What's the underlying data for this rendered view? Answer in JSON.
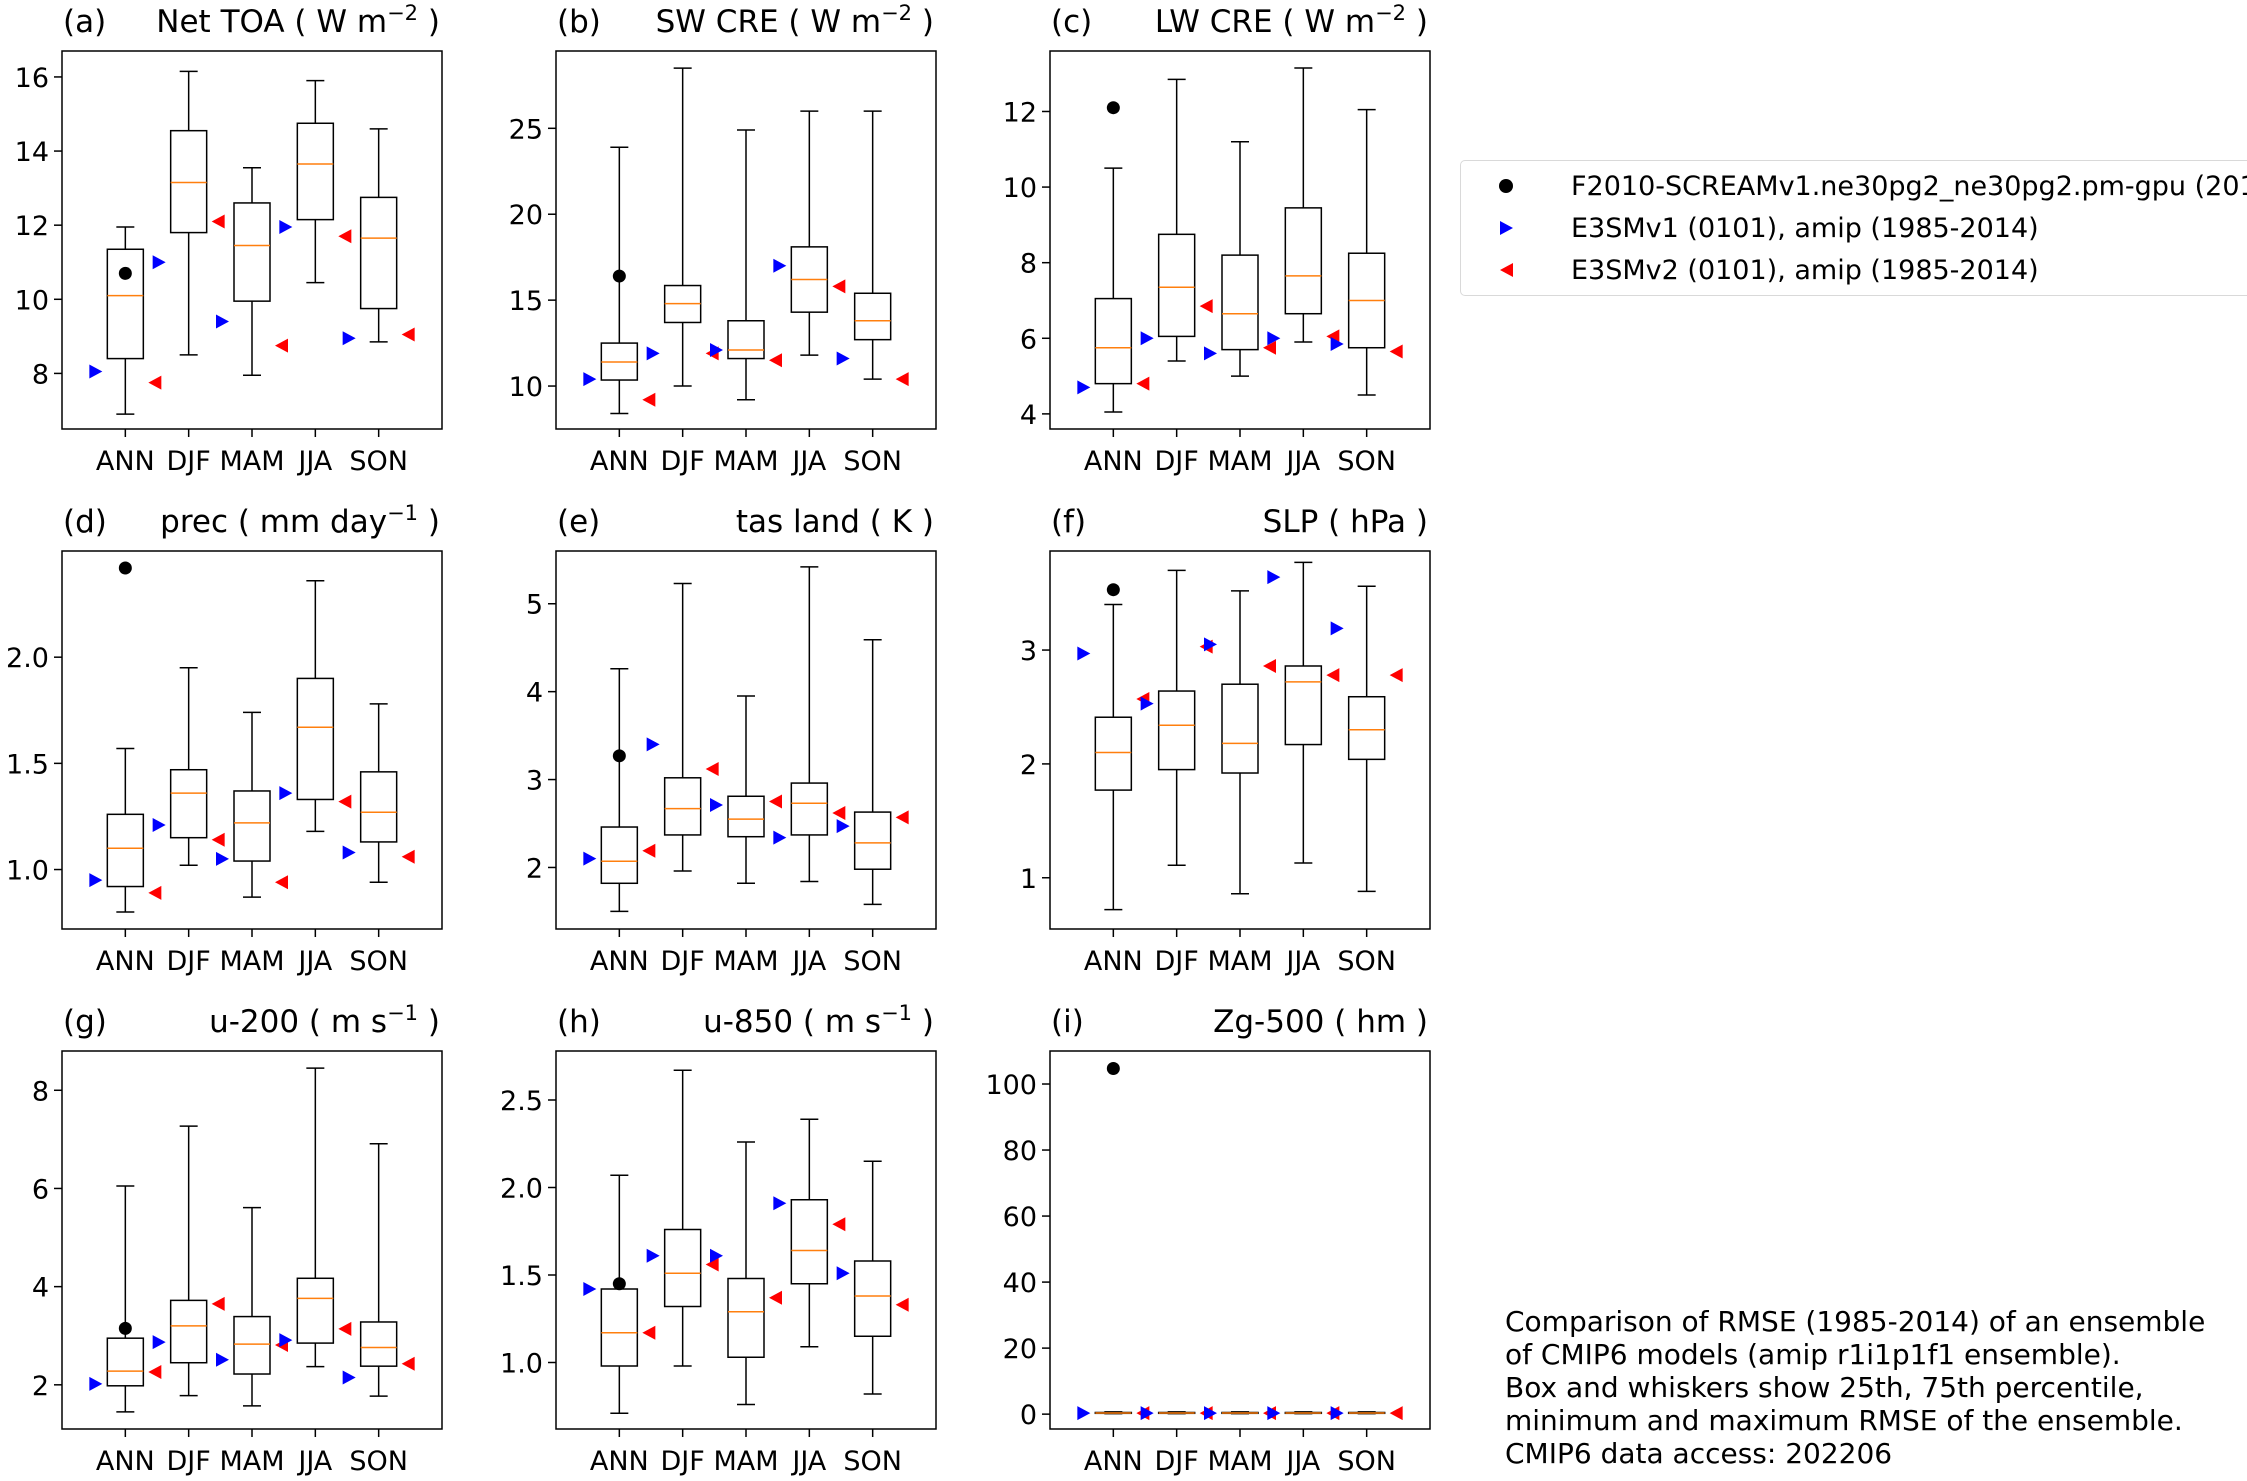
{
  "chart_data": [
    {
      "panel": "(a)",
      "title": "Net TOA ( W m$^{-2}$ )",
      "title_main": "Net TOA ( W m",
      "title_sup": "−2",
      "title_end": " )",
      "type": "box",
      "categories": [
        "ANN",
        "DJF",
        "MAM",
        "JJA",
        "SON"
      ],
      "ylim": [
        6.5,
        16.7
      ],
      "yticks": [
        8,
        10,
        12,
        14,
        16
      ],
      "yticklabels": [
        "8",
        "10",
        "12",
        "14",
        "16"
      ],
      "boxes": [
        {
          "min": 6.9,
          "q1": 8.4,
          "median": 10.1,
          "q3": 11.35,
          "max": 11.95
        },
        {
          "min": 8.5,
          "q1": 11.8,
          "median": 13.15,
          "q3": 14.55,
          "max": 16.15
        },
        {
          "min": 7.95,
          "q1": 9.95,
          "median": 11.45,
          "q3": 12.6,
          "max": 13.55
        },
        {
          "min": 10.45,
          "q1": 12.15,
          "median": 13.65,
          "q3": 14.75,
          "max": 15.9
        },
        {
          "min": 8.85,
          "q1": 9.75,
          "median": 11.65,
          "q3": 12.75,
          "max": 14.6
        }
      ],
      "markers": {
        "F2010": [
          10.7,
          null,
          null,
          null,
          null
        ],
        "E3SMv1": [
          8.05,
          11.0,
          9.4,
          11.95,
          8.95
        ],
        "E3SMv2": [
          7.75,
          12.1,
          8.75,
          11.7,
          9.05
        ]
      }
    },
    {
      "panel": "(b)",
      "title": "SW CRE ( W m$^{-2}$ )",
      "title_main": "SW CRE ( W m",
      "title_sup": "−2",
      "title_end": " )",
      "type": "box",
      "categories": [
        "ANN",
        "DJF",
        "MAM",
        "JJA",
        "SON"
      ],
      "ylim": [
        7.5,
        29.5
      ],
      "yticks": [
        10,
        15,
        20,
        25
      ],
      "yticklabels": [
        "10",
        "15",
        "20",
        "25"
      ],
      "boxes": [
        {
          "min": 8.4,
          "q1": 10.35,
          "median": 11.4,
          "q3": 12.5,
          "max": 23.9
        },
        {
          "min": 10.0,
          "q1": 13.7,
          "median": 14.8,
          "q3": 15.85,
          "max": 28.5
        },
        {
          "min": 9.2,
          "q1": 11.6,
          "median": 12.1,
          "q3": 13.8,
          "max": 24.9
        },
        {
          "min": 11.8,
          "q1": 14.3,
          "median": 16.2,
          "q3": 18.1,
          "max": 26.0
        },
        {
          "min": 10.4,
          "q1": 12.7,
          "median": 13.8,
          "q3": 15.4,
          "max": 26.0
        }
      ],
      "markers": {
        "F2010": [
          16.4,
          null,
          null,
          null,
          null
        ],
        "E3SMv1": [
          10.4,
          11.9,
          12.1,
          17.0,
          11.6
        ],
        "E3SMv2": [
          9.2,
          11.9,
          11.5,
          15.8,
          10.4
        ]
      }
    },
    {
      "panel": "(c)",
      "title": "LW CRE ( W m$^{-2}$ )",
      "title_main": "LW CRE ( W m",
      "title_sup": "−2",
      "title_end": " )",
      "type": "box",
      "categories": [
        "ANN",
        "DJF",
        "MAM",
        "JJA",
        "SON"
      ],
      "ylim": [
        3.6,
        13.6
      ],
      "yticks": [
        4,
        6,
        8,
        10,
        12
      ],
      "yticklabels": [
        "4",
        "6",
        "8",
        "10",
        "12"
      ],
      "boxes": [
        {
          "min": 4.05,
          "q1": 4.8,
          "median": 5.75,
          "q3": 7.05,
          "max": 10.5
        },
        {
          "min": 5.4,
          "q1": 6.05,
          "median": 7.35,
          "q3": 8.75,
          "max": 12.85
        },
        {
          "min": 5.0,
          "q1": 5.7,
          "median": 6.65,
          "q3": 8.2,
          "max": 11.2
        },
        {
          "min": 5.9,
          "q1": 6.65,
          "median": 7.65,
          "q3": 9.45,
          "max": 13.15
        },
        {
          "min": 4.5,
          "q1": 5.75,
          "median": 7.0,
          "q3": 8.25,
          "max": 12.05
        }
      ],
      "markers": {
        "F2010": [
          12.1,
          null,
          null,
          null,
          null
        ],
        "E3SMv1": [
          4.7,
          6.0,
          5.6,
          6.0,
          5.85
        ],
        "E3SMv2": [
          4.8,
          6.85,
          5.75,
          6.05,
          5.65
        ]
      }
    },
    {
      "panel": "(d)",
      "title": "prec ( mm day$^{-1}$ )",
      "title_main": "prec ( mm day",
      "title_sup": "−1",
      "title_end": " )",
      "type": "box",
      "categories": [
        "ANN",
        "DJF",
        "MAM",
        "JJA",
        "SON"
      ],
      "ylim": [
        0.72,
        2.5
      ],
      "yticks": [
        1.0,
        1.5,
        2.0
      ],
      "yticklabels": [
        "1.0",
        "1.5",
        "2.0"
      ],
      "boxes": [
        {
          "min": 0.8,
          "q1": 0.92,
          "median": 1.1,
          "q3": 1.26,
          "max": 1.57
        },
        {
          "min": 1.02,
          "q1": 1.15,
          "median": 1.36,
          "q3": 1.47,
          "max": 1.95
        },
        {
          "min": 0.87,
          "q1": 1.04,
          "median": 1.22,
          "q3": 1.37,
          "max": 1.74
        },
        {
          "min": 1.18,
          "q1": 1.33,
          "median": 1.67,
          "q3": 1.9,
          "max": 2.36
        },
        {
          "min": 0.94,
          "q1": 1.13,
          "median": 1.27,
          "q3": 1.46,
          "max": 1.78
        }
      ],
      "markers": {
        "F2010": [
          2.42,
          null,
          null,
          null,
          null
        ],
        "E3SMv1": [
          0.95,
          1.21,
          1.05,
          1.36,
          1.08
        ],
        "E3SMv2": [
          0.89,
          1.14,
          0.94,
          1.32,
          1.06
        ]
      }
    },
    {
      "panel": "(e)",
      "title": "tas land ( K )",
      "title_main": "tas land ( K )",
      "title_sup": "",
      "title_end": "",
      "type": "box",
      "categories": [
        "ANN",
        "DJF",
        "MAM",
        "JJA",
        "SON"
      ],
      "ylim": [
        1.3,
        5.6
      ],
      "yticks": [
        2,
        3,
        4,
        5
      ],
      "yticklabels": [
        "2",
        "3",
        "4",
        "5"
      ],
      "boxes": [
        {
          "min": 1.5,
          "q1": 1.82,
          "median": 2.07,
          "q3": 2.46,
          "max": 4.26
        },
        {
          "min": 1.96,
          "q1": 2.37,
          "median": 2.67,
          "q3": 3.02,
          "max": 5.23
        },
        {
          "min": 1.82,
          "q1": 2.35,
          "median": 2.55,
          "q3": 2.81,
          "max": 3.95
        },
        {
          "min": 1.84,
          "q1": 2.37,
          "median": 2.73,
          "q3": 2.96,
          "max": 5.42
        },
        {
          "min": 1.58,
          "q1": 1.98,
          "median": 2.28,
          "q3": 2.63,
          "max": 4.59
        }
      ],
      "markers": {
        "F2010": [
          3.27,
          null,
          null,
          null,
          null
        ],
        "E3SMv1": [
          2.1,
          3.4,
          2.71,
          2.34,
          2.47
        ],
        "E3SMv2": [
          2.19,
          3.12,
          2.75,
          2.62,
          2.57
        ]
      }
    },
    {
      "panel": "(f)",
      "title": "SLP ( hPa )",
      "title_main": "SLP ( hPa )",
      "title_sup": "",
      "title_end": "",
      "type": "box",
      "categories": [
        "ANN",
        "DJF",
        "MAM",
        "JJA",
        "SON"
      ],
      "ylim": [
        0.55,
        3.87
      ],
      "yticks": [
        1,
        2,
        3
      ],
      "yticklabels": [
        "1",
        "2",
        "3"
      ],
      "boxes": [
        {
          "min": 0.72,
          "q1": 1.77,
          "median": 2.1,
          "q3": 2.41,
          "max": 3.4
        },
        {
          "min": 1.11,
          "q1": 1.95,
          "median": 2.34,
          "q3": 2.64,
          "max": 3.7
        },
        {
          "min": 0.86,
          "q1": 1.92,
          "median": 2.18,
          "q3": 2.7,
          "max": 3.52
        },
        {
          "min": 1.13,
          "q1": 2.17,
          "median": 2.72,
          "q3": 2.86,
          "max": 3.77
        },
        {
          "min": 0.88,
          "q1": 2.04,
          "median": 2.3,
          "q3": 2.59,
          "max": 3.56
        }
      ],
      "markers": {
        "F2010": [
          3.53,
          null,
          null,
          null,
          null
        ],
        "E3SMv1": [
          2.97,
          2.53,
          3.05,
          3.64,
          3.19
        ],
        "E3SMv2": [
          2.57,
          3.03,
          2.86,
          2.78,
          2.78
        ]
      }
    },
    {
      "panel": "(g)",
      "title": "u-200 ( m s$^{-1}$ )",
      "title_main": "u-200 ( m s",
      "title_sup": "−1",
      "title_end": " )",
      "type": "box",
      "categories": [
        "ANN",
        "DJF",
        "MAM",
        "JJA",
        "SON"
      ],
      "ylim": [
        1.1,
        8.8
      ],
      "yticks": [
        2,
        4,
        6,
        8
      ],
      "yticklabels": [
        "2",
        "4",
        "6",
        "8"
      ],
      "boxes": [
        {
          "min": 1.45,
          "q1": 1.98,
          "median": 2.28,
          "q3": 2.95,
          "max": 6.05
        },
        {
          "min": 1.78,
          "q1": 2.45,
          "median": 3.2,
          "q3": 3.72,
          "max": 7.27
        },
        {
          "min": 1.57,
          "q1": 2.22,
          "median": 2.83,
          "q3": 3.39,
          "max": 5.61
        },
        {
          "min": 2.37,
          "q1": 2.85,
          "median": 3.76,
          "q3": 4.17,
          "max": 8.45
        },
        {
          "min": 1.77,
          "q1": 2.38,
          "median": 2.76,
          "q3": 3.28,
          "max": 6.91
        }
      ],
      "markers": {
        "F2010": [
          3.15,
          null,
          null,
          null,
          null
        ],
        "E3SMv1": [
          2.02,
          2.87,
          2.51,
          2.91,
          2.15
        ],
        "E3SMv2": [
          2.26,
          3.65,
          2.81,
          3.14,
          2.43
        ]
      }
    },
    {
      "panel": "(h)",
      "title": "u-850 ( m s$^{-1}$ )",
      "title_main": "u-850 ( m s",
      "title_sup": "−1",
      "title_end": " )",
      "type": "box",
      "categories": [
        "ANN",
        "DJF",
        "MAM",
        "JJA",
        "SON"
      ],
      "ylim": [
        0.62,
        2.78
      ],
      "yticks": [
        1.0,
        1.5,
        2.0,
        2.5
      ],
      "yticklabels": [
        "1.0",
        "1.5",
        "2.0",
        "2.5"
      ],
      "boxes": [
        {
          "min": 0.71,
          "q1": 0.98,
          "median": 1.17,
          "q3": 1.42,
          "max": 2.07
        },
        {
          "min": 0.98,
          "q1": 1.32,
          "median": 1.51,
          "q3": 1.76,
          "max": 2.67
        },
        {
          "min": 0.76,
          "q1": 1.03,
          "median": 1.29,
          "q3": 1.48,
          "max": 2.26
        },
        {
          "min": 1.09,
          "q1": 1.45,
          "median": 1.64,
          "q3": 1.93,
          "max": 2.39
        },
        {
          "min": 0.82,
          "q1": 1.15,
          "median": 1.38,
          "q3": 1.58,
          "max": 2.15
        }
      ],
      "markers": {
        "F2010": [
          1.45,
          null,
          null,
          null,
          null
        ],
        "E3SMv1": [
          1.42,
          1.61,
          1.61,
          1.91,
          1.51
        ],
        "E3SMv2": [
          1.17,
          1.56,
          1.37,
          1.79,
          1.33
        ]
      }
    },
    {
      "panel": "(i)",
      "title": "Zg-500 ( hm )",
      "title_main": "Zg-500 ( hm )",
      "title_sup": "",
      "title_end": "",
      "type": "box",
      "categories": [
        "ANN",
        "DJF",
        "MAM",
        "JJA",
        "SON"
      ],
      "ylim": [
        -4.5,
        110
      ],
      "yticks": [
        0,
        20,
        40,
        60,
        80,
        100
      ],
      "yticklabels": [
        "0",
        "20",
        "40",
        "60",
        "80",
        "100"
      ],
      "boxes": [
        {
          "min": 0.15,
          "q1": 0.25,
          "median": 0.35,
          "q3": 0.5,
          "max": 0.7
        },
        {
          "min": 0.15,
          "q1": 0.25,
          "median": 0.35,
          "q3": 0.5,
          "max": 0.7
        },
        {
          "min": 0.15,
          "q1": 0.25,
          "median": 0.35,
          "q3": 0.5,
          "max": 0.7
        },
        {
          "min": 0.15,
          "q1": 0.25,
          "median": 0.35,
          "q3": 0.5,
          "max": 0.7
        },
        {
          "min": 0.15,
          "q1": 0.25,
          "median": 0.35,
          "q3": 0.5,
          "max": 0.7
        }
      ],
      "markers": {
        "F2010": [
          104.7,
          null,
          null,
          null,
          null
        ],
        "E3SMv1": [
          0.3,
          0.3,
          0.3,
          0.3,
          0.3
        ],
        "E3SMv2": [
          0.3,
          0.3,
          0.3,
          0.3,
          0.3
        ]
      }
    }
  ],
  "legend": {
    "entries": [
      {
        "key": "F2010",
        "label": "F2010-SCREAMv1.ne30pg2_ne30pg2.pm-gpu (201",
        "color": "#000000",
        "marker": "circle"
      },
      {
        "key": "E3SMv1",
        "label": "E3SMv1 (0101), amip (1985-2014)",
        "color": "#0000ff",
        "marker": "triangle-right"
      },
      {
        "key": "E3SMv2",
        "label": "E3SMv2 (0101), amip (1985-2014)",
        "color": "#ff0000",
        "marker": "triangle-left"
      }
    ]
  },
  "note": {
    "lines": [
      "Comparison of RMSE (1985-2014) of an ensemble",
      "of CMIP6 models (amip r1i1p1f1 ensemble).",
      "Box and whiskers show 25th, 75th percentile,",
      "minimum and maximum RMSE of the ensemble.",
      "CMIP6 data access: 202206"
    ]
  },
  "colors": {
    "median": "#ff7f0e",
    "box": "#000000"
  }
}
